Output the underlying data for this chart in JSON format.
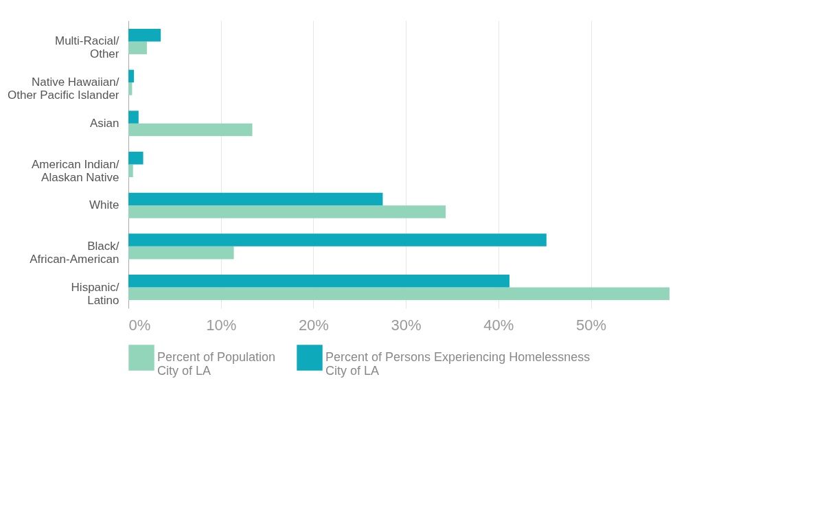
{
  "chart_data": {
    "type": "bar",
    "orientation": "horizontal",
    "categories": [
      "Multi-Racial/\nOther",
      "Native Hawaiian/\nOther Pacific Islander",
      "Asian",
      "American Indian/\nAlaskan Native",
      "White",
      "Black/\nAfrican-American",
      "Hispanic/\nLatino"
    ],
    "series": [
      {
        "name": "Percent of Population\nCity of LA",
        "color": "#93d5bb",
        "values": [
          2.0,
          0.4,
          13.4,
          0.5,
          34.3,
          11.4,
          58.5
        ]
      },
      {
        "name": "Percent of Persons Experiencing Homelessness\nCity of LA",
        "color": "#0fa9bc",
        "values": [
          3.5,
          0.6,
          1.1,
          1.6,
          27.5,
          45.2,
          41.2
        ]
      }
    ],
    "xlim": [
      0,
      58.5
    ],
    "xticks": [
      {
        "value": 0,
        "label": "0%"
      },
      {
        "value": 10,
        "label": "10%"
      },
      {
        "value": 20,
        "label": "20%"
      },
      {
        "value": 30,
        "label": "30%"
      },
      {
        "value": 40,
        "label": "40%"
      },
      {
        "value": 50,
        "label": "50%"
      }
    ],
    "grid": "x",
    "legend": "bottom"
  }
}
